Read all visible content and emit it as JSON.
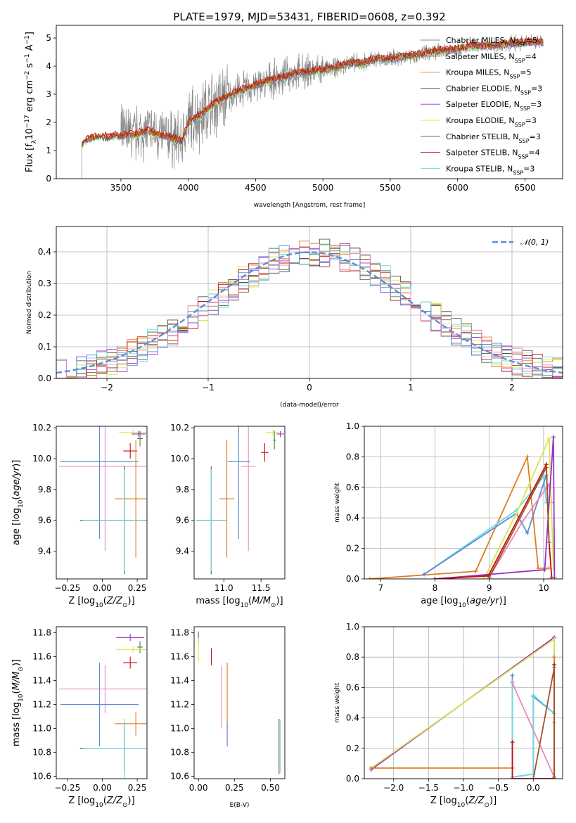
{
  "title": "PLATE=1979, MJD=53431, FIBERID=0608, z=0.392",
  "colors": {
    "Chabrier MILES": "#888888",
    "Salpeter MILES": "#a0522d",
    "Kroupa MILES": "#e07b20",
    "Chabrier ELODIE": "#4f7f3a",
    "Salpeter ELODIE": "#9b30c8",
    "Kroupa ELODIE": "#d8e84a",
    "Chabrier STELIB": "#555555",
    "Salpeter STELIB": "#c01010",
    "Kroupa STELIB": "#70d8e0",
    "blue": "#5b8dd8",
    "pink": "#e888b8"
  },
  "chart_data": [
    {
      "id": "spectrum",
      "type": "line",
      "xlabel": "wavelength [Angstrom, rest frame]",
      "ylabel": "Flux [f_λ10^-17 erg cm^-2 s^-1 A^-1]",
      "xlim": [
        3020,
        6780
      ],
      "ylim": [
        0,
        5.45
      ],
      "xticks": [
        "3500",
        "4000",
        "4500",
        "5000",
        "5500",
        "6000",
        "6500"
      ],
      "yticks": [
        "0",
        "1",
        "2",
        "3",
        "4",
        "5"
      ],
      "legend_position": "top-right",
      "series": [
        {
          "name": "Chabrier MILES, N_SSP=5"
        },
        {
          "name": "Salpeter MILES, N_SSP=4"
        },
        {
          "name": "Kroupa MILES, N_SSP=5"
        },
        {
          "name": "Chabrier ELODIE, N_SSP=3"
        },
        {
          "name": "Salpeter ELODIE, N_SSP=3"
        },
        {
          "name": "Kroupa ELODIE, N_SSP=3"
        },
        {
          "name": "Chabrier STELIB, N_SSP=3"
        },
        {
          "name": "Salpeter STELIB, N_SSP=4"
        },
        {
          "name": "Kroupa STELIB, N_SSP=3"
        }
      ],
      "continuum": {
        "x": [
          3200,
          3210,
          3250,
          3300,
          3350,
          3400,
          3450,
          3500,
          3550,
          3600,
          3650,
          3700,
          3750,
          3800,
          3850,
          3900,
          3950,
          4000,
          4100,
          4200,
          4300,
          4400,
          4500,
          4600,
          4700,
          4800,
          4900,
          5000,
          5100,
          5200,
          5300,
          5400,
          5500,
          5600,
          5700,
          5800,
          5900,
          6000,
          6100,
          6200,
          6300,
          6400,
          6500,
          6600,
          6640
        ],
        "y": [
          0,
          1.25,
          1.4,
          1.45,
          1.5,
          1.45,
          1.55,
          1.5,
          1.6,
          1.55,
          1.65,
          1.7,
          1.6,
          1.55,
          1.5,
          1.4,
          1.3,
          2.0,
          2.3,
          2.7,
          2.95,
          3.15,
          3.3,
          3.5,
          3.6,
          3.75,
          3.8,
          3.85,
          3.95,
          4.1,
          4.1,
          4.25,
          4.25,
          4.35,
          4.4,
          4.5,
          4.55,
          4.6,
          4.7,
          4.7,
          4.75,
          4.8,
          4.85,
          4.85,
          4.85
        ]
      }
    },
    {
      "id": "residuals",
      "type": "line",
      "xlabel": "(data-model)/error",
      "ylabel": "Normed distribution",
      "xlim": [
        -2.5,
        2.5
      ],
      "ylim": [
        0,
        0.48
      ],
      "xticks": [
        "−2",
        "−1",
        "0",
        "1",
        "2"
      ],
      "yticks": [
        "0.0",
        "0.1",
        "0.2",
        "0.3",
        "0.4"
      ],
      "legend": "𝒩(0, 1)",
      "legend_position": "top-right",
      "grid": true
    },
    {
      "id": "age_vs_Z",
      "type": "scatter",
      "xlabel": "Z [log10(Z/Z⊙)]",
      "ylabel": "age  [log10(age/yr)]",
      "xlim": [
        -0.33,
        0.32
      ],
      "ylim": [
        9.22,
        10.21
      ],
      "xticks": [
        "−0.25",
        "0.00",
        "0.25"
      ],
      "yticks": [
        "9.4",
        "9.6",
        "9.8",
        "10.0",
        "10.2"
      ],
      "points": [
        {
          "x": 0.22,
          "y": 10.17,
          "xe": 0.1,
          "ye": 0.02,
          "c": "Kroupa ELODIE"
        },
        {
          "x": 0.27,
          "y": 10.13,
          "xe": 0.02,
          "ye": 0.05,
          "c": "Chabrier ELODIE"
        },
        {
          "x": 0.26,
          "y": 10.16,
          "xe": 0.05,
          "ye": 0.02,
          "c": "Salpeter ELODIE"
        },
        {
          "x": 0.2,
          "y": 10.05,
          "xe": 0.05,
          "ye": 0.05,
          "c": "Salpeter STELIB"
        },
        {
          "x": 0.02,
          "y": 9.95,
          "xe": 0.33,
          "ye": 0.55,
          "c": "pink"
        },
        {
          "x": -0.02,
          "y": 9.98,
          "xe": 0.28,
          "ye": 0.5,
          "c": "blue"
        },
        {
          "x": 0.24,
          "y": 9.74,
          "xe": 0.15,
          "ye": 0.38,
          "c": "Kroupa MILES"
        },
        {
          "x": 0.16,
          "y": 9.6,
          "xe": 0.32,
          "ye": 0.35,
          "c": "Chabrier STELIB"
        },
        {
          "x": 0.16,
          "y": 9.6,
          "xe": 0.3,
          "ye": 0.33,
          "c": "Kroupa STELIB"
        }
      ]
    },
    {
      "id": "age_vs_mass",
      "type": "scatter",
      "xlabel": "mass [log10(M/M⊙)]",
      "ylabel": "",
      "xlim": [
        10.6,
        11.82
      ],
      "ylim": [
        9.22,
        10.21
      ],
      "xticks": [
        "11.0",
        "11.5"
      ],
      "yticks": [
        "9.4",
        "9.6",
        "9.8",
        "10.0",
        "10.2"
      ],
      "points": [
        {
          "x": 11.66,
          "y": 10.17,
          "xe": 0.1,
          "ye": 0.02,
          "c": "Kroupa ELODIE"
        },
        {
          "x": 11.68,
          "y": 10.12,
          "xe": 0.02,
          "ye": 0.06,
          "c": "Chabrier ELODIE"
        },
        {
          "x": 11.76,
          "y": 10.16,
          "xe": 0.05,
          "ye": 0.02,
          "c": "Salpeter ELODIE"
        },
        {
          "x": 11.55,
          "y": 10.04,
          "xe": 0.05,
          "ye": 0.06,
          "c": "Salpeter STELIB"
        },
        {
          "x": 11.33,
          "y": 9.95,
          "xe": 0.1,
          "ye": 0.55,
          "c": "pink"
        },
        {
          "x": 11.2,
          "y": 9.98,
          "xe": 0.15,
          "ye": 0.5,
          "c": "blue"
        },
        {
          "x": 11.04,
          "y": 9.74,
          "xe": 0.1,
          "ye": 0.38,
          "c": "Kroupa MILES"
        },
        {
          "x": 10.83,
          "y": 9.6,
          "xe": 0.2,
          "ye": 0.35,
          "c": "Chabrier STELIB"
        },
        {
          "x": 10.83,
          "y": 9.6,
          "xe": 0.2,
          "ye": 0.33,
          "c": "Kroupa STELIB"
        }
      ]
    },
    {
      "id": "weight_vs_age",
      "type": "line",
      "xlabel": "age  [log10(age/yr)]",
      "ylabel": "mass weight",
      "xlim": [
        6.7,
        10.35
      ],
      "ylim": [
        0,
        1.0
      ],
      "xticks": [
        "7",
        "8",
        "9",
        "10"
      ],
      "yticks": [
        "0.0",
        "0.2",
        "0.4",
        "0.6",
        "0.8",
        "1.0"
      ],
      "grid": true,
      "series": [
        {
          "c": "Kroupa MILES",
          "x": [
            6.8,
            8.75,
            9.7,
            9.9,
            10.1
          ],
          "y": [
            0.0,
            0.05,
            0.8,
            0.07,
            0.07
          ]
        },
        {
          "c": "Kroupa STELIB",
          "x": [
            7.8,
            9.5,
            10.0,
            10.05
          ],
          "y": [
            0.03,
            0.45,
            0.67,
            0.5
          ]
        },
        {
          "c": "blue",
          "x": [
            7.8,
            9.5,
            9.7,
            10.05
          ],
          "y": [
            0.03,
            0.43,
            0.3,
            0.68
          ]
        },
        {
          "c": "pink",
          "x": [
            9.0,
            9.6,
            10.1,
            10.15
          ],
          "y": [
            0.01,
            0.37,
            0.62,
            0.5
          ]
        },
        {
          "c": "Kroupa ELODIE",
          "x": [
            8.9,
            9.5,
            10.1,
            10.18
          ],
          "y": [
            0.0,
            0.43,
            0.92,
            0.07
          ]
        },
        {
          "c": "Salpeter ELODIE",
          "x": [
            8.0,
            10.02,
            10.18,
            10.2
          ],
          "y": [
            0.0,
            0.06,
            0.93,
            0.01
          ]
        },
        {
          "c": "Salpeter STELIB",
          "x": [
            8.0,
            8.98,
            10.05,
            10.1,
            10.15
          ],
          "y": [
            0.0,
            0.02,
            0.75,
            0.24,
            0.01
          ]
        },
        {
          "c": "Salpeter MILES",
          "x": [
            9.0,
            10.05,
            10.1
          ],
          "y": [
            0.01,
            0.73,
            0.24
          ]
        }
      ]
    },
    {
      "id": "mass_vs_Z",
      "type": "scatter",
      "xlabel": "Z [log10(Z/Z⊙)]",
      "ylabel": "mass [log10(M/M⊙)]",
      "xlim": [
        -0.33,
        0.32
      ],
      "ylim": [
        10.58,
        11.85
      ],
      "xticks": [
        "−0.25",
        "0.00",
        "0.25"
      ],
      "yticks": [
        "10.6",
        "10.8",
        "11.0",
        "11.2",
        "11.4",
        "11.6",
        "11.8"
      ],
      "points": [
        {
          "x": 0.2,
          "y": 11.76,
          "xe": 0.1,
          "ye": 0.03,
          "c": "Salpeter ELODIE"
        },
        {
          "x": 0.27,
          "y": 11.68,
          "xe": 0.02,
          "ye": 0.05,
          "c": "Chabrier ELODIE"
        },
        {
          "x": 0.22,
          "y": 11.66,
          "xe": 0.12,
          "ye": 0.03,
          "c": "Kroupa ELODIE"
        },
        {
          "x": 0.2,
          "y": 11.55,
          "xe": 0.05,
          "ye": 0.05,
          "c": "Salpeter STELIB"
        },
        {
          "x": 0.02,
          "y": 11.33,
          "xe": 0.33,
          "ye": 0.2,
          "c": "pink"
        },
        {
          "x": -0.02,
          "y": 11.2,
          "xe": 0.28,
          "ye": 0.35,
          "c": "blue"
        },
        {
          "x": 0.24,
          "y": 11.04,
          "xe": 0.15,
          "ye": 0.1,
          "c": "Kroupa MILES"
        },
        {
          "x": 0.16,
          "y": 10.83,
          "xe": 0.32,
          "ye": 0.2,
          "c": "Chabrier STELIB"
        },
        {
          "x": 0.16,
          "y": 10.83,
          "xe": 0.3,
          "ye": 0.25,
          "c": "Kroupa STELIB"
        }
      ]
    },
    {
      "id": "mass_vs_ebv",
      "type": "scatter",
      "xlabel": "E(B-V)",
      "ylabel": "",
      "xlim": [
        -0.03,
        0.6
      ],
      "ylim": [
        10.58,
        11.85
      ],
      "xticks": [
        "0.00",
        "0.25",
        "0.50"
      ],
      "yticks": [
        "10.6",
        "10.8",
        "11.0",
        "11.2",
        "11.4",
        "11.6",
        "11.8"
      ],
      "points": [
        {
          "x": 0.0,
          "y": 11.76,
          "xe": 0,
          "ye": 0.05,
          "c": "Salpeter ELODIE"
        },
        {
          "x": 0.0,
          "y": 11.66,
          "xe": 0,
          "ye": 0.1,
          "c": "Kroupa ELODIE"
        },
        {
          "x": 0.09,
          "y": 11.6,
          "xe": 0,
          "ye": 0.07,
          "c": "Salpeter STELIB"
        },
        {
          "x": 0.16,
          "y": 11.26,
          "xe": 0,
          "ye": 0.26,
          "c": "pink"
        },
        {
          "x": 0.2,
          "y": 11.2,
          "xe": 0,
          "ye": 0.35,
          "c": "Kroupa MILES"
        },
        {
          "x": 0.2,
          "y": 10.95,
          "xe": 0,
          "ye": 0.1,
          "c": "blue"
        },
        {
          "x": 0.56,
          "y": 10.85,
          "xe": 0,
          "ye": 0.23,
          "c": "Chabrier STELIB"
        },
        {
          "x": 0.57,
          "y": 10.85,
          "xe": 0,
          "ye": 0.22,
          "c": "Kroupa STELIB"
        }
      ]
    },
    {
      "id": "weight_vs_Z",
      "type": "line",
      "xlabel": "Z [log10(Z/Z⊙)]",
      "ylabel": "mass weight",
      "xlim": [
        -2.42,
        0.42
      ],
      "ylim": [
        0,
        1.0
      ],
      "xticks": [
        "−2.0",
        "−1.5",
        "−1.0",
        "−0.5",
        "0.0"
      ],
      "yticks": [
        "0.0",
        "0.2",
        "0.4",
        "0.6",
        "0.8",
        "1.0"
      ],
      "grid": true,
      "series": [
        {
          "c": "Salpeter ELODIE",
          "x": [
            -2.32,
            0.3,
            0.3
          ],
          "y": [
            0.06,
            0.93,
            0.01
          ]
        },
        {
          "c": "Kroupa ELODIE",
          "x": [
            -2.32,
            0.3,
            0.3
          ],
          "y": [
            0.07,
            0.92,
            0.06
          ]
        },
        {
          "c": "Kroupa MILES",
          "x": [
            -2.32,
            -0.3,
            -0.3,
            0.3,
            0.3
          ],
          "y": [
            0.07,
            0.07,
            0.0,
            0.0,
            0.8
          ]
        },
        {
          "c": "blue",
          "x": [
            -0.3,
            -0.3,
            0.0,
            0.0,
            0.3
          ],
          "y": [
            0.68,
            0.01,
            0.03,
            0.54,
            0.43
          ]
        },
        {
          "c": "Kroupa STELIB",
          "x": [
            -0.3,
            -0.3,
            0.0,
            0.0,
            0.3
          ],
          "y": [
            0.64,
            0.01,
            0.03,
            0.55,
            0.43
          ]
        },
        {
          "c": "pink",
          "x": [
            -0.3,
            0.3,
            0.3
          ],
          "y": [
            0.63,
            0.01,
            0.37
          ]
        },
        {
          "c": "Salpeter STELIB",
          "x": [
            -0.3,
            -0.3,
            0.3,
            0.3
          ],
          "y": [
            0.24,
            0.0,
            0.0,
            0.75
          ]
        },
        {
          "c": "Salpeter MILES",
          "x": [
            0.0,
            0.3,
            0.3
          ],
          "y": [
            0.0,
            0.73,
            0.01
          ]
        }
      ]
    }
  ]
}
